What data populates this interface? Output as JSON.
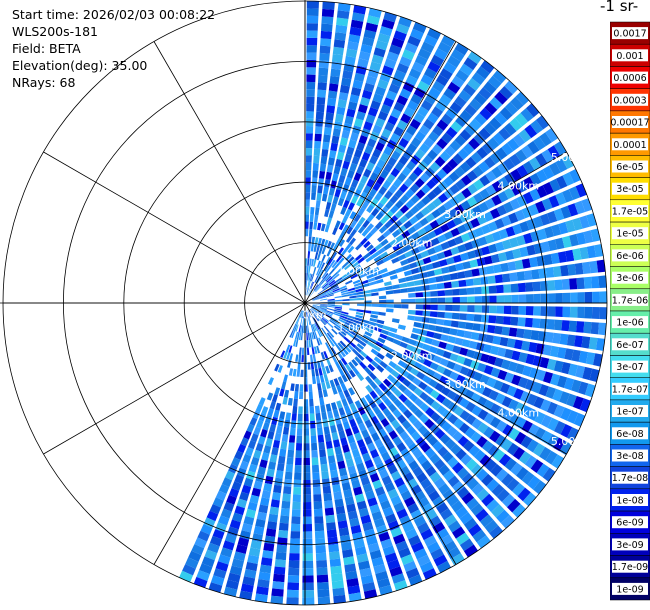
{
  "info": {
    "lines": [
      "Start time: 2026/02/03 00:08:22",
      "WLS200s-181",
      "Field: BETA",
      "Elevation(deg): 35.00",
      "NRays: 68"
    ]
  },
  "colorbar": {
    "title": "-1 sr-",
    "labels": [
      "0.0017",
      "0.001",
      "0.0006",
      "0.0003",
      "0.00017",
      "0.0001",
      "6e-05",
      "3e-05",
      "1.7e-05",
      "1e-05",
      "6e-06",
      "3e-06",
      "1.7e-06",
      "1e-06",
      "6e-07",
      "3e-07",
      "1.7e-07",
      "1e-07",
      "6e-08",
      "3e-08",
      "1.7e-08",
      "1e-08",
      "6e-09",
      "3e-09",
      "1.7e-09",
      "1e-09"
    ],
    "colors": [
      "#990000",
      "#cc0000",
      "#ee0000",
      "#ff3300",
      "#ff7700",
      "#ff9900",
      "#ffbb00",
      "#ffdd00",
      "#ffff33",
      "#eeff44",
      "#ccff55",
      "#aaff66",
      "#88ee88",
      "#66eeaa",
      "#55ddcc",
      "#44ddee",
      "#33ccff",
      "#22aaee",
      "#1199ee",
      "#1166ee",
      "#1144dd",
      "#0022ee",
      "#0000dd",
      "#0000bb",
      "#000099",
      "#000066"
    ]
  },
  "chart_data": {
    "type": "heatmap",
    "projection": "polar (PPI scan)",
    "field": "BETA",
    "elevation_deg": 35.0,
    "n_rays": 68,
    "azimuth_span_deg": [
      0,
      205
    ],
    "max_range_km": 5.0,
    "range_rings_km": [
      1,
      2,
      3,
      4,
      5
    ],
    "ring_labels": [
      "1.00km",
      "2.00km",
      "3.00km",
      "4.00km",
      "5.00km",
      "0km"
    ],
    "value_range": [
      1e-09,
      0.0017
    ],
    "typical_value": "1e-08 to 1e-07",
    "grid": true
  }
}
